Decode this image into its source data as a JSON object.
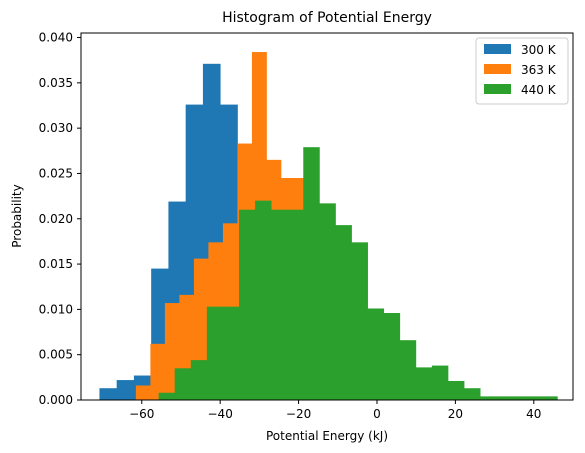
{
  "chart_data": {
    "type": "bar",
    "title": "Histogram of Potential Energy",
    "xlabel": "Potential Energy (kJ)",
    "ylabel": "Probability",
    "xlim": [
      -75.5,
      50
    ],
    "ylim": [
      0,
      0.0405
    ],
    "xticks": [
      -60,
      -40,
      -20,
      0,
      20,
      40
    ],
    "xtick_labels": [
      "−60",
      "−40",
      "−20",
      "0",
      "20",
      "40"
    ],
    "yticks": [
      0,
      0.005,
      0.01,
      0.015,
      0.02,
      0.025,
      0.03,
      0.035,
      0.04
    ],
    "ytick_labels": [
      "0.000",
      "0.005",
      "0.010",
      "0.015",
      "0.020",
      "0.025",
      "0.030",
      "0.035",
      "0.040"
    ],
    "grid": false,
    "legend_position": "top-right",
    "series": [
      {
        "name": "300 K",
        "color": "#1f77b4",
        "bins": [
          {
            "x0": -70.8,
            "x1": -66.4,
            "y": 0.0013
          },
          {
            "x0": -66.4,
            "x1": -62.0,
            "y": 0.0022
          },
          {
            "x0": -62.0,
            "x1": -57.6,
            "y": 0.0027
          },
          {
            "x0": -57.6,
            "x1": -53.2,
            "y": 0.0145
          },
          {
            "x0": -53.2,
            "x1": -48.8,
            "y": 0.0219
          },
          {
            "x0": -48.8,
            "x1": -44.4,
            "y": 0.0326
          },
          {
            "x0": -44.4,
            "x1": -40.0,
            "y": 0.0371
          },
          {
            "x0": -40.0,
            "x1": -35.6,
            "y": 0.0326
          },
          {
            "x0": -35.6,
            "x1": -31.2,
            "y": 0.0272
          },
          {
            "x0": -31.2,
            "x1": -26.8,
            "y": 0.0249
          },
          {
            "x0": -26.8,
            "x1": -22.4,
            "y": 0.0208
          }
        ]
      },
      {
        "name": "363 K",
        "color": "#ff7f0e",
        "bins": [
          {
            "x0": -61.5,
            "x1": -57.8,
            "y": 0.0016
          },
          {
            "x0": -57.8,
            "x1": -54.1,
            "y": 0.0062
          },
          {
            "x0": -54.1,
            "x1": -50.4,
            "y": 0.0107
          },
          {
            "x0": -50.4,
            "x1": -46.7,
            "y": 0.0116
          },
          {
            "x0": -46.7,
            "x1": -43.0,
            "y": 0.0156
          },
          {
            "x0": -43.0,
            "x1": -39.3,
            "y": 0.0174
          },
          {
            "x0": -39.3,
            "x1": -35.6,
            "y": 0.0195
          },
          {
            "x0": -35.6,
            "x1": -31.9,
            "y": 0.0283
          },
          {
            "x0": -31.9,
            "x1": -28.2,
            "y": 0.0384
          },
          {
            "x0": -28.2,
            "x1": -24.5,
            "y": 0.0265
          },
          {
            "x0": -24.5,
            "x1": -20.8,
            "y": 0.0245
          },
          {
            "x0": -20.8,
            "x1": -17.1,
            "y": 0.0245
          }
        ]
      },
      {
        "name": "440 K",
        "color": "#2ca02c",
        "bins": [
          {
            "x0": -55.7,
            "x1": -51.6,
            "y": 0.0008
          },
          {
            "x0": -51.6,
            "x1": -47.5,
            "y": 0.0035
          },
          {
            "x0": -47.5,
            "x1": -43.4,
            "y": 0.0044
          },
          {
            "x0": -43.4,
            "x1": -39.3,
            "y": 0.0103
          },
          {
            "x0": -39.3,
            "x1": -35.2,
            "y": 0.0103
          },
          {
            "x0": -35.2,
            "x1": -31.1,
            "y": 0.021
          },
          {
            "x0": -31.1,
            "x1": -27.0,
            "y": 0.022
          },
          {
            "x0": -27.0,
            "x1": -22.9,
            "y": 0.021
          },
          {
            "x0": -22.9,
            "x1": -18.8,
            "y": 0.021
          },
          {
            "x0": -18.8,
            "x1": -14.7,
            "y": 0.0279
          },
          {
            "x0": -14.7,
            "x1": -10.6,
            "y": 0.0217
          },
          {
            "x0": -10.6,
            "x1": -6.5,
            "y": 0.0193
          },
          {
            "x0": -6.5,
            "x1": -2.4,
            "y": 0.0174
          },
          {
            "x0": -2.4,
            "x1": 1.7,
            "y": 0.0101
          },
          {
            "x0": 1.7,
            "x1": 5.8,
            "y": 0.0096
          },
          {
            "x0": 5.8,
            "x1": 9.9,
            "y": 0.0066
          },
          {
            "x0": 9.9,
            "x1": 14.0,
            "y": 0.0036
          },
          {
            "x0": 14.0,
            "x1": 18.1,
            "y": 0.0038
          },
          {
            "x0": 18.1,
            "x1": 22.2,
            "y": 0.0021
          },
          {
            "x0": 22.2,
            "x1": 26.3,
            "y": 0.0013
          },
          {
            "x0": 26.3,
            "x1": 30.4,
            "y": 0.0004
          },
          {
            "x0": 30.4,
            "x1": 34.5,
            "y": 0.0004
          },
          {
            "x0": 34.5,
            "x1": 38.6,
            "y": 0.0004
          },
          {
            "x0": 38.6,
            "x1": 42.7,
            "y": 0.0004
          },
          {
            "x0": 42.7,
            "x1": 46.0,
            "y": 0.0004
          }
        ]
      }
    ]
  }
}
